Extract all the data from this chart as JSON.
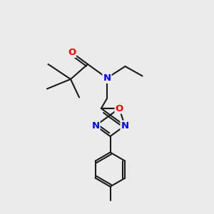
{
  "bg_color": "#ebebeb",
  "bond_color": "#1a1a1a",
  "bond_width": 1.5,
  "atom_colors": {
    "O": "#ff0000",
    "N": "#0000ff",
    "C": "#1a1a1a"
  },
  "font_size_atom": 9.5
}
